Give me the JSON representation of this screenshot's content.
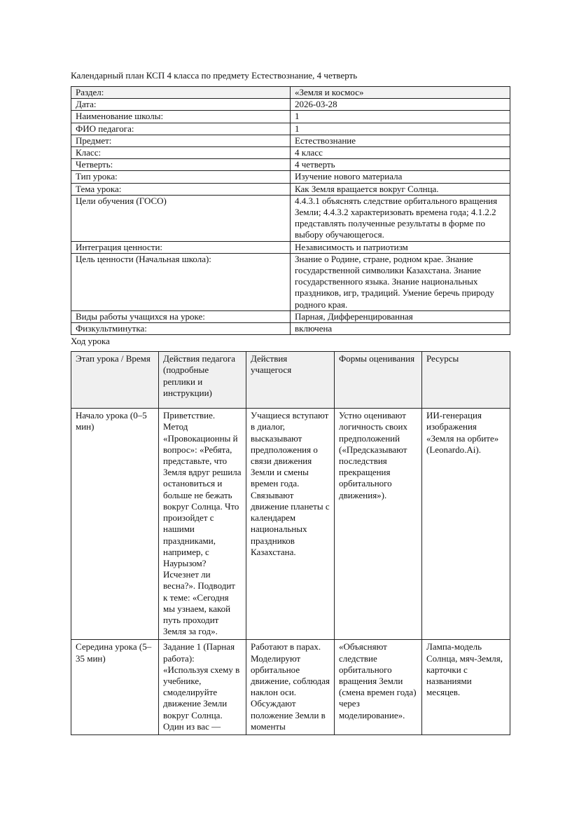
{
  "title": "Календарный план КСП 4 класса по предмету Естествознание, 4 четверть",
  "info": [
    {
      "label": "Раздел:",
      "value": "«Земля и космос»"
    },
    {
      "label": "Дата:",
      "value": "2026-03-28"
    },
    {
      "label": "Наименование школы:",
      "value": "1"
    },
    {
      "label": "ФИО педагога:",
      "value": "1"
    },
    {
      "label": "Предмет:",
      "value": "Естествознание"
    },
    {
      "label": "Класс:",
      "value": "4 класс"
    },
    {
      "label": "Четверть:",
      "value": "4 четверть"
    },
    {
      "label": "Тип урока:",
      "value": "Изучение нового материала"
    },
    {
      "label": "Тема урока:",
      "value": "Как Земля вращается вокруг Солнца."
    },
    {
      "label": "Цели обучения (ГОСО)",
      "value": "4.4.3.1 объяснять следствие орбитального вращения Земли; 4.4.3.2 характеризовать времена года; 4.1.2.2 представлять полученные результаты в форме по выбору обучающегося."
    },
    {
      "label": "Интеграция ценности:",
      "value": "Независимость и патриотизм"
    },
    {
      "label": "Цель ценности (Начальная школа):",
      "value": "Знание о Родине, стране, родном крае. Знание государственной символики Казахстана. Знание государственного языка. Знание национальных праздников, игр, традиций. Умение беречь природу родного края."
    },
    {
      "label": "Виды работы учащихся на уроке:",
      "value": "Парная, Дифференцированная"
    },
    {
      "label": "Физкультминутка:",
      "value": "включена"
    }
  ],
  "lesson_heading": "Ход урока",
  "lesson": {
    "headers": [
      "Этап урока / Время",
      "Действия педагога (подробные реплики и инструкции)",
      "Действия учащегося",
      "Формы оценивания",
      "Ресурсы"
    ],
    "rows": [
      [
        "Начало урока (0–5 мин)",
        "Приветствие. Метод «Провокационны й вопрос»: «Ребята, представьте, что Земля вдруг решила остановиться и больше не бежать вокруг Солнца. Что произойдет с нашими праздниками, например, с Наурызом? Исчезнет ли весна?». Подводит к теме: «Сегодня мы узнаем, какой путь проходит Земля за год».",
        "Учащиеся вступают в диалог, высказывают предположения о связи движения Земли и смены времен года. Связывают движение планеты с календарем национальных праздников Казахстана.",
        "Устно оценивают логичность своих предположений («Предсказывают последствия прекращения орбитального движения»).",
        "ИИ-генерация изображения «Земля на орбите» (Leonardo.Ai)."
      ],
      [
        "Середина урока (5–35 мин)",
        "Задание 1 (Парная работа): «Используя схему в учебнике, смоделируйте движение Земли вокруг Солнца. Один из вас —",
        "Работают в парах. Моделируют орбитальное движение, соблюдая наклон оси. Обсуждают положение Земли в моменты",
        "«Объясняют следствие орбитального вращения Земли (смена времен года) через моделирование».",
        "Лампа-модель Солнца, мяч-Земля, карточки с названиями месяцев."
      ]
    ]
  }
}
